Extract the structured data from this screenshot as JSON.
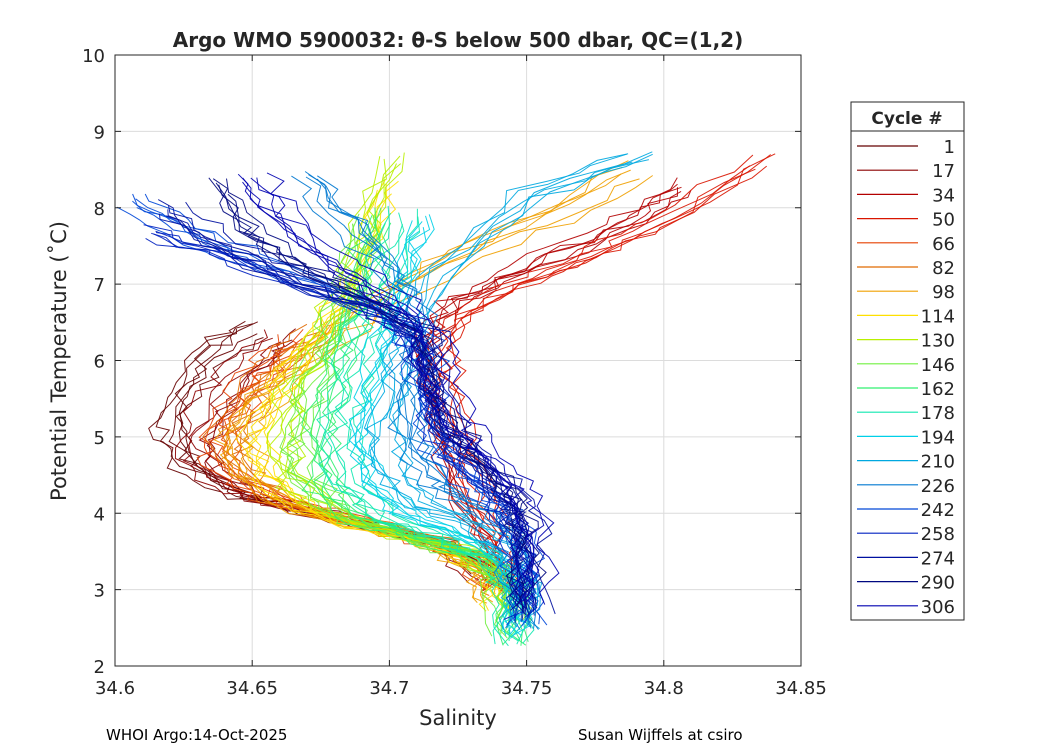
{
  "footer": {
    "left": "WHOI Argo:14-Oct-2025",
    "right": "Susan Wijffels at csiro"
  },
  "chart_data": {
    "type": "line",
    "title": "Argo WMO 5900032: θ-S below 500 dbar,  QC=(1,2)",
    "xlabel": "Salinity",
    "ylabel": "Potential Temperature (˚C)",
    "xlim": [
      34.6,
      34.85
    ],
    "ylim": [
      2,
      10
    ],
    "xticks": [
      34.6,
      34.65,
      34.7,
      34.75,
      34.8,
      34.85
    ],
    "xtick_labels": [
      "34.6",
      "34.65",
      "34.7",
      "34.75",
      "34.8",
      "34.85"
    ],
    "yticks": [
      2,
      3,
      4,
      5,
      6,
      7,
      8,
      9,
      10
    ],
    "ytick_labels": [
      "2",
      "3",
      "4",
      "5",
      "6",
      "7",
      "8",
      "9",
      "10"
    ],
    "grid": true,
    "legend": {
      "title": "Cycle #",
      "placement": "right, outside",
      "entries": [
        {
          "label": "1",
          "color": "#660000"
        },
        {
          "label": "17",
          "color": "#8c0000"
        },
        {
          "label": "34",
          "color": "#b30000"
        },
        {
          "label": "50",
          "color": "#d91500"
        },
        {
          "label": "66",
          "color": "#e64000"
        },
        {
          "label": "82",
          "color": "#e06a00"
        },
        {
          "label": "98",
          "color": "#f0a000"
        },
        {
          "label": "114",
          "color": "#ffe000"
        },
        {
          "label": "130",
          "color": "#b8f000"
        },
        {
          "label": "146",
          "color": "#70f040"
        },
        {
          "label": "162",
          "color": "#30f070"
        },
        {
          "label": "178",
          "color": "#10e8b0"
        },
        {
          "label": "194",
          "color": "#00d0e8"
        },
        {
          "label": "210",
          "color": "#00a8e0"
        },
        {
          "label": "226",
          "color": "#0078d0"
        },
        {
          "label": "242",
          "color": "#0048d8"
        },
        {
          "label": "258",
          "color": "#0020c0"
        },
        {
          "label": "274",
          "color": "#0010a0"
        },
        {
          "label": "290",
          "color": "#000880"
        },
        {
          "label": "306",
          "color": "#0000b0"
        }
      ]
    },
    "series": [
      {
        "name": "1",
        "color": "#660000",
        "profile": [
          [
            34.736,
            3.2
          ],
          [
            34.72,
            3.6
          ],
          [
            34.69,
            3.85
          ],
          [
            34.66,
            4.1
          ],
          [
            34.64,
            4.3
          ],
          [
            34.625,
            4.7
          ],
          [
            34.62,
            5.1
          ],
          [
            34.625,
            5.6
          ],
          [
            34.635,
            6.1
          ],
          [
            34.65,
            6.4
          ]
        ]
      },
      {
        "name": "17",
        "color": "#8c0000",
        "profile": [
          [
            34.738,
            3.1
          ],
          [
            34.722,
            3.55
          ],
          [
            34.695,
            3.8
          ],
          [
            34.665,
            4.05
          ],
          [
            34.645,
            4.25
          ],
          [
            34.632,
            4.6
          ],
          [
            34.63,
            5.0
          ],
          [
            34.638,
            5.5
          ],
          [
            34.65,
            6.0
          ],
          [
            34.66,
            6.3
          ]
        ]
      },
      {
        "name": "34",
        "color": "#b30000",
        "profile": [
          [
            34.742,
            3.0
          ],
          [
            34.74,
            3.5
          ],
          [
            34.73,
            4.2
          ],
          [
            34.722,
            4.9
          ],
          [
            34.718,
            5.6
          ],
          [
            34.716,
            6.2
          ],
          [
            34.725,
            6.7
          ],
          [
            34.745,
            7.1
          ],
          [
            34.77,
            7.5
          ],
          [
            34.795,
            7.9
          ],
          [
            34.81,
            8.3
          ]
        ]
      },
      {
        "name": "50",
        "color": "#d91500",
        "profile": [
          [
            34.744,
            2.95
          ],
          [
            34.741,
            3.45
          ],
          [
            34.733,
            4.1
          ],
          [
            34.726,
            4.8
          ],
          [
            34.72,
            5.5
          ],
          [
            34.718,
            6.1
          ],
          [
            34.727,
            6.6
          ],
          [
            34.75,
            7.05
          ],
          [
            34.775,
            7.4
          ],
          [
            34.8,
            7.8
          ],
          [
            34.835,
            8.6
          ]
        ]
      },
      {
        "name": "66",
        "color": "#e64000",
        "profile": [
          [
            34.74,
            3.0
          ],
          [
            34.73,
            3.4
          ],
          [
            34.71,
            3.7
          ],
          [
            34.68,
            3.95
          ],
          [
            34.655,
            4.2
          ],
          [
            34.64,
            4.6
          ],
          [
            34.638,
            5.0
          ],
          [
            34.645,
            5.5
          ],
          [
            34.655,
            5.9
          ],
          [
            34.665,
            6.3
          ]
        ]
      },
      {
        "name": "82",
        "color": "#e06a00",
        "profile": [
          [
            34.742,
            2.9
          ],
          [
            34.735,
            3.3
          ],
          [
            34.715,
            3.65
          ],
          [
            34.685,
            3.9
          ],
          [
            34.66,
            4.15
          ],
          [
            34.642,
            4.55
          ],
          [
            34.64,
            5.1
          ],
          [
            34.65,
            5.6
          ],
          [
            34.662,
            6.0
          ],
          [
            34.675,
            6.4
          ]
        ]
      },
      {
        "name": "98",
        "color": "#f0a000",
        "profile": [
          [
            34.74,
            2.8
          ],
          [
            34.735,
            3.25
          ],
          [
            34.718,
            3.6
          ],
          [
            34.69,
            3.85
          ],
          [
            34.665,
            4.1
          ],
          [
            34.648,
            4.5
          ],
          [
            34.645,
            5.0
          ],
          [
            34.655,
            5.5
          ],
          [
            34.668,
            6.0
          ],
          [
            34.69,
            6.6
          ],
          [
            34.72,
            7.3
          ],
          [
            34.76,
            7.9
          ],
          [
            34.79,
            8.5
          ]
        ]
      },
      {
        "name": "114",
        "color": "#ffe000",
        "profile": [
          [
            34.742,
            2.7
          ],
          [
            34.738,
            3.2
          ],
          [
            34.72,
            3.55
          ],
          [
            34.695,
            3.8
          ],
          [
            34.67,
            4.05
          ],
          [
            34.655,
            4.5
          ],
          [
            34.652,
            5.0
          ],
          [
            34.66,
            5.6
          ],
          [
            34.672,
            6.2
          ],
          [
            34.685,
            6.9
          ],
          [
            34.695,
            7.6
          ],
          [
            34.7,
            8.3
          ]
        ]
      },
      {
        "name": "130",
        "color": "#b8f000",
        "profile": [
          [
            34.744,
            2.6
          ],
          [
            34.74,
            3.15
          ],
          [
            34.725,
            3.5
          ],
          [
            34.7,
            3.75
          ],
          [
            34.678,
            4.0
          ],
          [
            34.662,
            4.45
          ],
          [
            34.66,
            5.0
          ],
          [
            34.665,
            5.6
          ],
          [
            34.675,
            6.3
          ],
          [
            34.685,
            7.0
          ],
          [
            34.69,
            7.7
          ],
          [
            34.7,
            8.6
          ]
        ]
      },
      {
        "name": "146",
        "color": "#70f040",
        "profile": [
          [
            34.743,
            2.4
          ],
          [
            34.742,
            3.1
          ],
          [
            34.73,
            3.45
          ],
          [
            34.705,
            3.7
          ],
          [
            34.685,
            3.95
          ],
          [
            34.67,
            4.4
          ],
          [
            34.668,
            5.0
          ],
          [
            34.672,
            5.6
          ],
          [
            34.68,
            6.3
          ],
          [
            34.688,
            7.0
          ],
          [
            34.692,
            7.8
          ]
        ]
      },
      {
        "name": "162",
        "color": "#30f070",
        "profile": [
          [
            34.745,
            2.3
          ],
          [
            34.744,
            3.05
          ],
          [
            34.735,
            3.4
          ],
          [
            34.712,
            3.65
          ],
          [
            34.69,
            3.9
          ],
          [
            34.676,
            4.35
          ],
          [
            34.674,
            5.0
          ],
          [
            34.678,
            5.7
          ],
          [
            34.684,
            6.4
          ],
          [
            34.69,
            7.1
          ],
          [
            34.695,
            7.9
          ]
        ]
      },
      {
        "name": "178",
        "color": "#10e8b0",
        "profile": [
          [
            34.745,
            2.3
          ],
          [
            34.745,
            3.0
          ],
          [
            34.738,
            3.4
          ],
          [
            34.718,
            3.7
          ],
          [
            34.698,
            3.95
          ],
          [
            34.684,
            4.4
          ],
          [
            34.682,
            5.0
          ],
          [
            34.686,
            5.7
          ],
          [
            34.692,
            6.4
          ],
          [
            34.698,
            7.1
          ],
          [
            34.705,
            7.9
          ]
        ]
      },
      {
        "name": "194",
        "color": "#00d0e8",
        "profile": [
          [
            34.746,
            2.4
          ],
          [
            34.746,
            3.0
          ],
          [
            34.74,
            3.45
          ],
          [
            34.725,
            3.75
          ],
          [
            34.705,
            4.0
          ],
          [
            34.692,
            4.45
          ],
          [
            34.69,
            5.0
          ],
          [
            34.694,
            5.7
          ],
          [
            34.7,
            6.4
          ],
          [
            34.706,
            7.1
          ],
          [
            34.712,
            7.8
          ]
        ]
      },
      {
        "name": "210",
        "color": "#00a8e0",
        "profile": [
          [
            34.747,
            2.5
          ],
          [
            34.747,
            3.05
          ],
          [
            34.742,
            3.5
          ],
          [
            34.73,
            3.85
          ],
          [
            34.712,
            4.1
          ],
          [
            34.7,
            4.5
          ],
          [
            34.698,
            5.1
          ],
          [
            34.702,
            5.8
          ],
          [
            34.708,
            6.5
          ],
          [
            34.72,
            7.3
          ],
          [
            34.75,
            8.2
          ],
          [
            34.79,
            8.7
          ]
        ]
      },
      {
        "name": "226",
        "color": "#0078d0",
        "profile": [
          [
            34.748,
            2.5
          ],
          [
            34.748,
            3.1
          ],
          [
            34.745,
            3.6
          ],
          [
            34.735,
            4.0
          ],
          [
            34.72,
            4.3
          ],
          [
            34.71,
            4.7
          ],
          [
            34.706,
            5.3
          ],
          [
            34.708,
            6.0
          ],
          [
            34.71,
            6.6
          ],
          [
            34.7,
            7.2
          ],
          [
            34.685,
            7.8
          ],
          [
            34.67,
            8.4
          ]
        ]
      },
      {
        "name": "242",
        "color": "#0048d8",
        "profile": [
          [
            34.749,
            2.55
          ],
          [
            34.749,
            3.15
          ],
          [
            34.746,
            3.7
          ],
          [
            34.738,
            4.1
          ],
          [
            34.725,
            4.5
          ],
          [
            34.716,
            4.9
          ],
          [
            34.712,
            5.5
          ],
          [
            34.712,
            6.1
          ],
          [
            34.705,
            6.5
          ],
          [
            34.68,
            6.9
          ],
          [
            34.65,
            7.3
          ],
          [
            34.625,
            7.7
          ],
          [
            34.605,
            8.1
          ]
        ]
      },
      {
        "name": "258",
        "color": "#0020c0",
        "profile": [
          [
            34.75,
            2.6
          ],
          [
            34.75,
            3.2
          ],
          [
            34.748,
            3.8
          ],
          [
            34.74,
            4.2
          ],
          [
            34.73,
            4.6
          ],
          [
            34.72,
            5.0
          ],
          [
            34.715,
            5.6
          ],
          [
            34.712,
            6.2
          ],
          [
            34.7,
            6.6
          ],
          [
            34.67,
            7.0
          ],
          [
            34.64,
            7.4
          ],
          [
            34.615,
            7.7
          ]
        ]
      },
      {
        "name": "274",
        "color": "#0010a0",
        "profile": [
          [
            34.751,
            2.7
          ],
          [
            34.751,
            3.3
          ],
          [
            34.749,
            3.9
          ],
          [
            34.742,
            4.3
          ],
          [
            34.732,
            4.7
          ],
          [
            34.722,
            5.1
          ],
          [
            34.716,
            5.7
          ],
          [
            34.713,
            6.3
          ],
          [
            34.69,
            6.75
          ],
          [
            34.66,
            7.15
          ],
          [
            34.635,
            7.6
          ],
          [
            34.62,
            8.0
          ]
        ]
      },
      {
        "name": "290",
        "color": "#000880",
        "profile": [
          [
            34.752,
            2.75
          ],
          [
            34.752,
            3.35
          ],
          [
            34.75,
            3.95
          ],
          [
            34.744,
            4.35
          ],
          [
            34.734,
            4.75
          ],
          [
            34.724,
            5.15
          ],
          [
            34.718,
            5.75
          ],
          [
            34.714,
            6.35
          ],
          [
            34.695,
            6.8
          ],
          [
            34.67,
            7.2
          ],
          [
            34.65,
            7.7
          ],
          [
            34.64,
            8.3
          ]
        ]
      },
      {
        "name": "306",
        "color": "#0000b0",
        "profile": [
          [
            34.753,
            2.8
          ],
          [
            34.753,
            3.4
          ],
          [
            34.75,
            4.0
          ],
          [
            34.745,
            4.4
          ],
          [
            34.735,
            4.8
          ],
          [
            34.725,
            5.2
          ],
          [
            34.718,
            5.8
          ],
          [
            34.714,
            6.4
          ],
          [
            34.7,
            6.85
          ],
          [
            34.68,
            7.3
          ],
          [
            34.66,
            7.9
          ],
          [
            34.65,
            8.4
          ]
        ]
      }
    ]
  }
}
